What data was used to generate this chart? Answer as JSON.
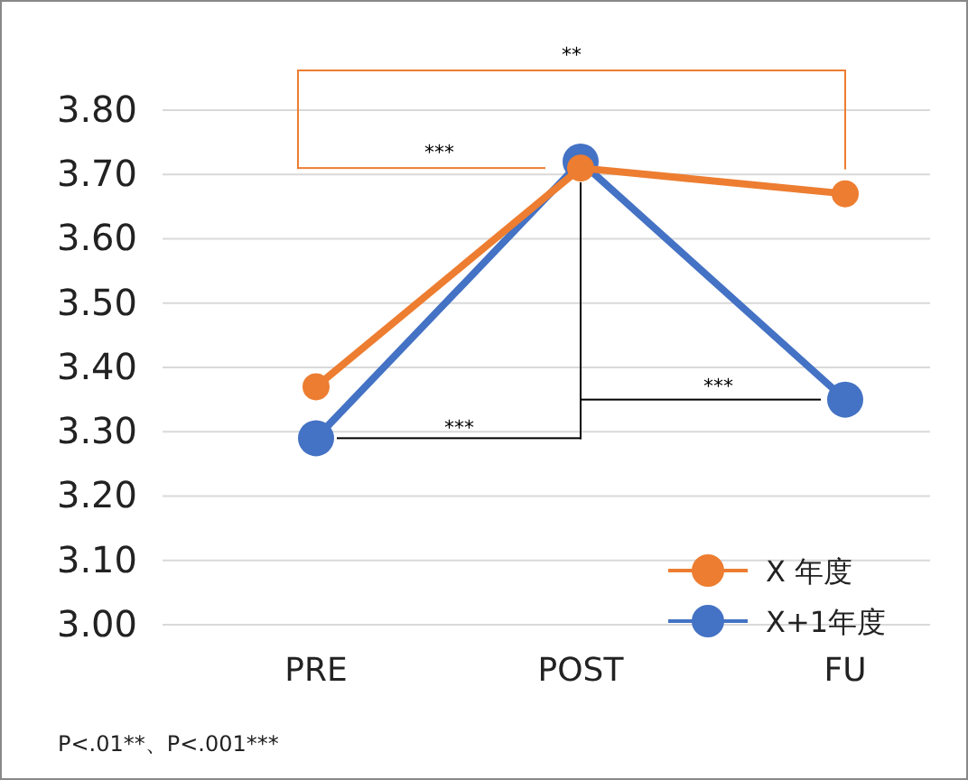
{
  "chart_data": {
    "type": "line",
    "categories": [
      "PRE",
      "POST",
      "FU"
    ],
    "series": [
      {
        "name": "X 年度",
        "color": "#ed7d31",
        "values": [
          3.37,
          3.71,
          3.67
        ]
      },
      {
        "name": "X+1年度",
        "color": "#4472c4",
        "values": [
          3.29,
          3.72,
          3.35
        ]
      }
    ],
    "ylim": [
      3.0,
      3.8
    ],
    "yticks": [
      {
        "value": 3.0,
        "label": "3.00"
      },
      {
        "value": 3.1,
        "label": "3.10"
      },
      {
        "value": 3.2,
        "label": "3.20"
      },
      {
        "value": 3.3,
        "label": "3.30"
      },
      {
        "value": 3.4,
        "label": "3.40"
      },
      {
        "value": 3.5,
        "label": "3.50"
      },
      {
        "value": 3.6,
        "label": "3.60"
      },
      {
        "value": 3.7,
        "label": "3.70"
      },
      {
        "value": 3.8,
        "label": "3.80"
      }
    ],
    "grid": "y",
    "legend": "bottom right",
    "marker": "circle",
    "line_style": "solid",
    "annotations": [
      "**",
      "***",
      "***",
      "***",
      "P<.01**、P<.001***"
    ]
  }
}
